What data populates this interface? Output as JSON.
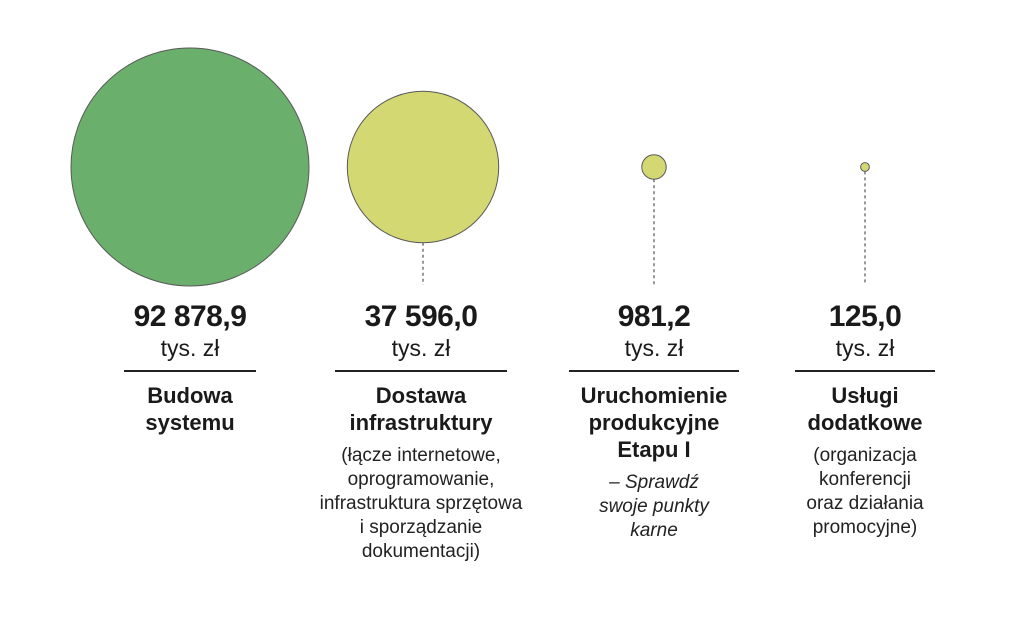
{
  "chart_data": {
    "type": "bubble",
    "title": "",
    "unit": "tys. zł",
    "colors": {
      "large": "#6aaf6b",
      "small": "#d4d872",
      "stroke": "#5a5a5a",
      "leader": "#555555"
    },
    "items": [
      {
        "value": 92878.9,
        "value_label": "92 878,9",
        "unit": "tys. zł",
        "label_lines": [
          "Budowa",
          "systemu"
        ],
        "desc_lines": [],
        "desc_italic": false,
        "color": "#6aaf6b"
      },
      {
        "value": 37596.0,
        "value_label": "37 596,0",
        "unit": "tys. zł",
        "label_lines": [
          "Dostawa",
          "infrastruktury"
        ],
        "desc_lines": [
          "(łącze internetowe,",
          "oprogramowanie,",
          "infrastruktura sprzętowa",
          "i sporządzanie",
          "dokumentacji)"
        ],
        "desc_italic": false,
        "color": "#d4d872"
      },
      {
        "value": 981.2,
        "value_label": "981,2",
        "unit": "tys. zł",
        "label_lines": [
          "Uruchomienie",
          "produkcyjne",
          "Etapu I"
        ],
        "desc_lines": [
          "– Sprawdź",
          "swoje punkty",
          "karne"
        ],
        "desc_italic": true,
        "color": "#d4d872"
      },
      {
        "value": 125.0,
        "value_label": "125,0",
        "unit": "tys. zł",
        "label_lines": [
          "Usługi",
          "dodatkowe"
        ],
        "desc_lines": [
          "(organizacja",
          "konferencji",
          "oraz działania",
          "promocyjne)"
        ],
        "desc_italic": false,
        "color": "#d4d872"
      }
    ]
  }
}
